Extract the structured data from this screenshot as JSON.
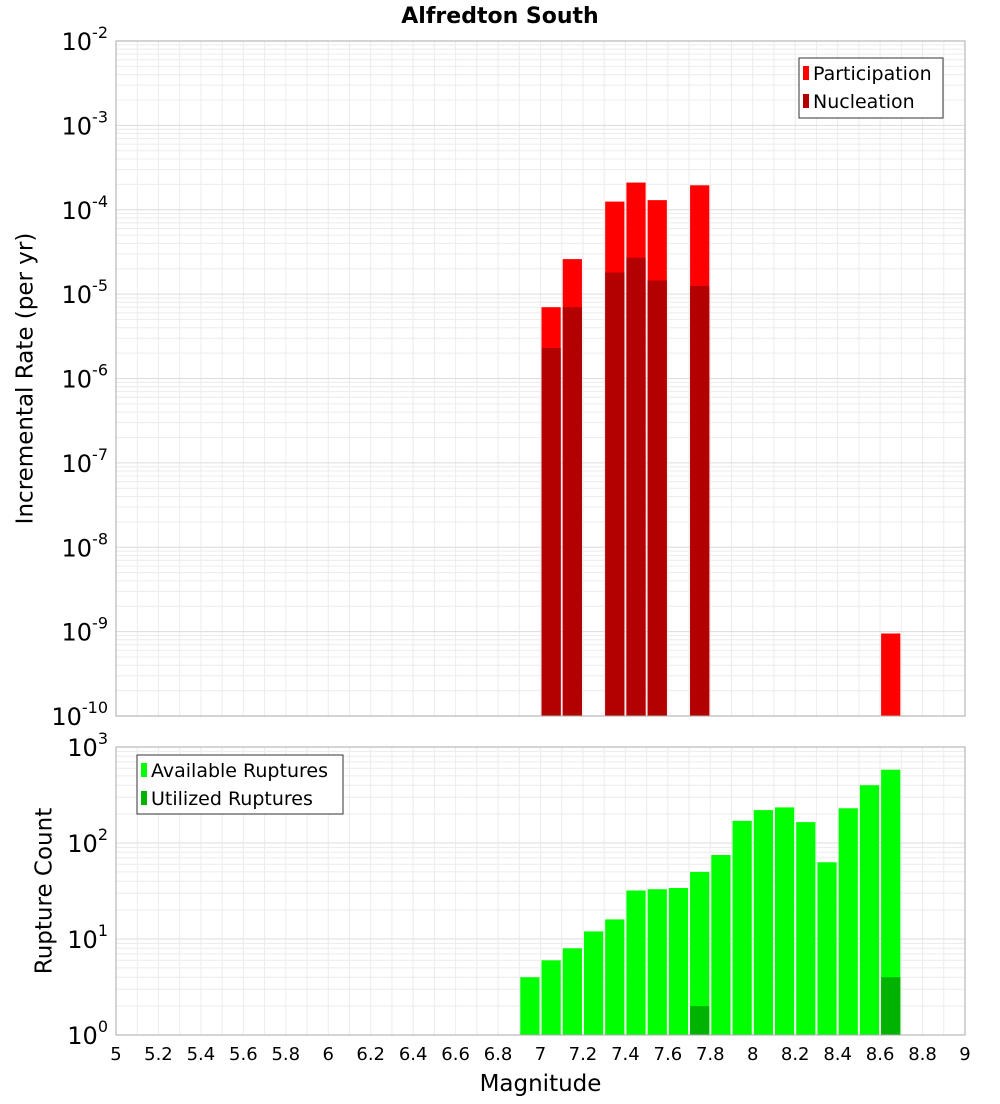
{
  "chart_data": [
    {
      "type": "bar",
      "title": "Alfredton South",
      "xlabel": "",
      "ylabel": "Incremental Rate (per yr)",
      "log_y": true,
      "xlim": [
        5,
        9
      ],
      "ylim": [
        1e-10,
        0.01
      ],
      "y_tick_exponents": [
        "-2",
        "-3",
        "-4",
        "-5",
        "-6",
        "-7",
        "-8",
        "-9",
        "-10"
      ],
      "grid": true,
      "legend_position": "top-right",
      "series": [
        {
          "name": "Participation",
          "color": "#ff0000",
          "points": [
            {
              "x": 7.05,
              "y": 7e-06
            },
            {
              "x": 7.15,
              "y": 2.6e-05
            },
            {
              "x": 7.35,
              "y": 0.000125
            },
            {
              "x": 7.45,
              "y": 0.00021
            },
            {
              "x": 7.55,
              "y": 0.00013
            },
            {
              "x": 7.75,
              "y": 0.000195
            },
            {
              "x": 8.65,
              "y": 9.5e-10
            }
          ]
        },
        {
          "name": "Nucleation",
          "color": "#b30000",
          "points": [
            {
              "x": 7.05,
              "y": 2.3e-06
            },
            {
              "x": 7.15,
              "y": 7e-06
            },
            {
              "x": 7.35,
              "y": 1.8e-05
            },
            {
              "x": 7.45,
              "y": 2.7e-05
            },
            {
              "x": 7.55,
              "y": 1.45e-05
            },
            {
              "x": 7.75,
              "y": 1.25e-05
            }
          ]
        }
      ]
    },
    {
      "type": "bar",
      "title": "",
      "xlabel": "Magnitude",
      "ylabel": "Rupture Count",
      "log_y": true,
      "xlim": [
        5,
        9
      ],
      "ylim": [
        1,
        1000
      ],
      "y_tick_exponents": [
        "3",
        "2",
        "1",
        "0"
      ],
      "x_ticks": [
        "5",
        "5.2",
        "5.4",
        "5.6",
        "5.8",
        "6",
        "6.2",
        "6.4",
        "6.6",
        "6.8",
        "7",
        "7.2",
        "7.4",
        "7.6",
        "7.8",
        "8",
        "8.2",
        "8.4",
        "8.6",
        "8.8",
        "9"
      ],
      "grid": true,
      "legend_position": "top-left",
      "series": [
        {
          "name": "Available Ruptures",
          "color": "#00ff00",
          "points": [
            {
              "x": 6.55,
              "y": 1
            },
            {
              "x": 6.75,
              "y": 1
            },
            {
              "x": 6.95,
              "y": 4
            },
            {
              "x": 7.05,
              "y": 6
            },
            {
              "x": 7.15,
              "y": 8
            },
            {
              "x": 7.25,
              "y": 12
            },
            {
              "x": 7.35,
              "y": 16
            },
            {
              "x": 7.45,
              "y": 32
            },
            {
              "x": 7.55,
              "y": 33
            },
            {
              "x": 7.65,
              "y": 34
            },
            {
              "x": 7.75,
              "y": 50
            },
            {
              "x": 7.85,
              "y": 75
            },
            {
              "x": 7.95,
              "y": 170
            },
            {
              "x": 8.05,
              "y": 220
            },
            {
              "x": 8.15,
              "y": 235
            },
            {
              "x": 8.25,
              "y": 165
            },
            {
              "x": 8.35,
              "y": 63
            },
            {
              "x": 8.45,
              "y": 230
            },
            {
              "x": 8.55,
              "y": 400
            },
            {
              "x": 8.65,
              "y": 580
            }
          ]
        },
        {
          "name": "Utilized Ruptures",
          "color": "#00b300",
          "points": [
            {
              "x": 7.05,
              "y": 1
            },
            {
              "x": 7.15,
              "y": 1
            },
            {
              "x": 7.35,
              "y": 1
            },
            {
              "x": 7.45,
              "y": 1
            },
            {
              "x": 7.55,
              "y": 1
            },
            {
              "x": 7.75,
              "y": 2
            },
            {
              "x": 8.65,
              "y": 4
            }
          ]
        }
      ]
    }
  ]
}
